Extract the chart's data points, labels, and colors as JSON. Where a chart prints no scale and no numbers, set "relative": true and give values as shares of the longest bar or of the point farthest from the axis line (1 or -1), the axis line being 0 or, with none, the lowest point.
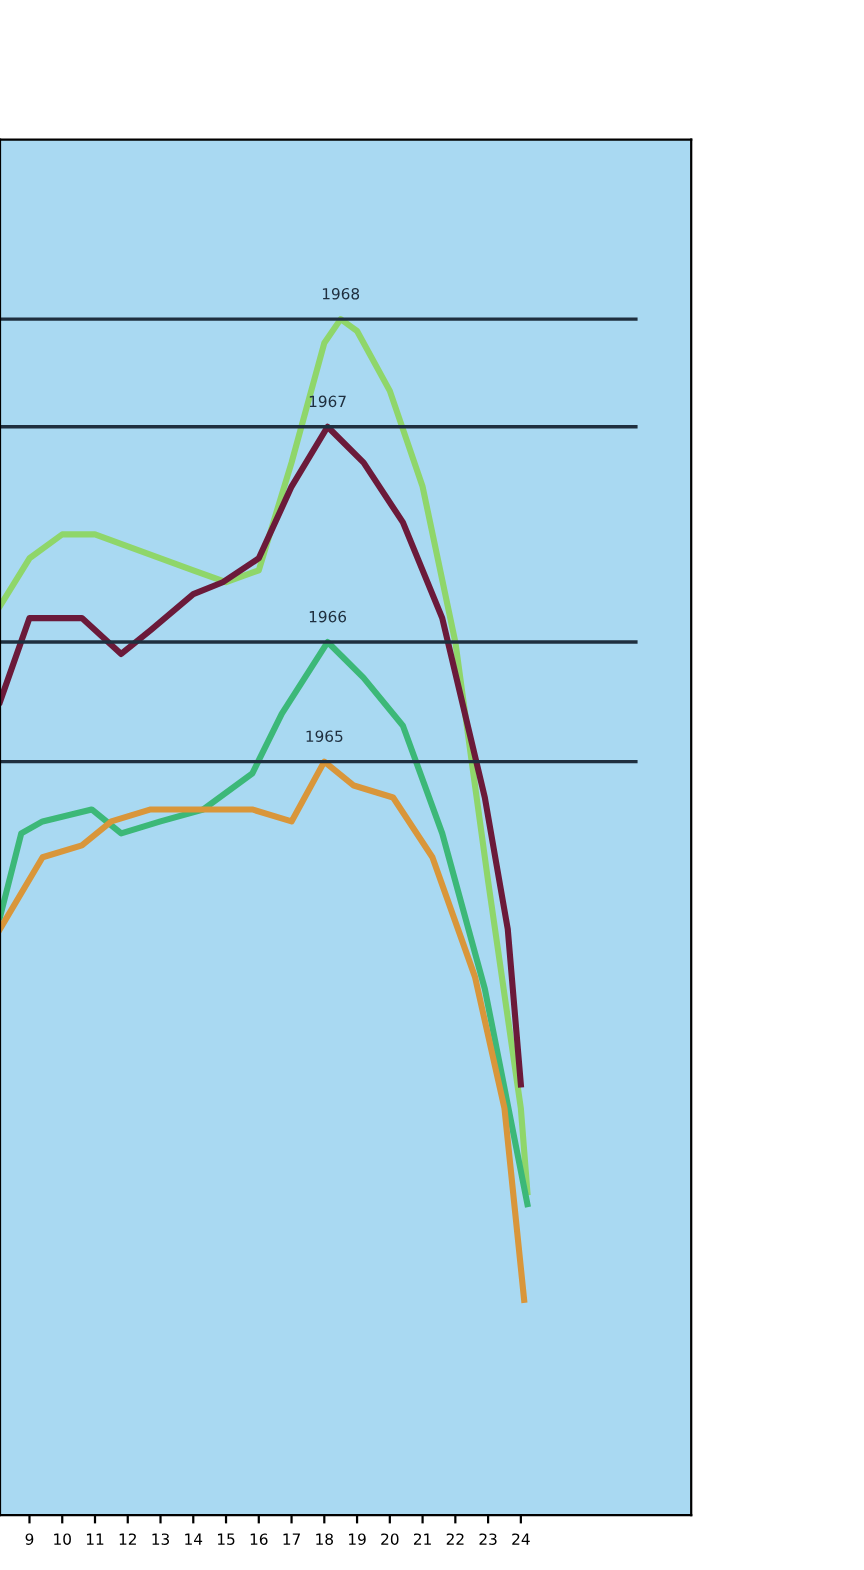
{
  "chart_data": {
    "type": "line",
    "relative": true,
    "tick_labels": "x",
    "grid": false,
    "legend": false,
    "marker": "none",
    "line_style": "solid",
    "xlim": [
      8.1,
      29.2
    ],
    "xticks": [
      9,
      10,
      11,
      12,
      13,
      14,
      15,
      16,
      17,
      18,
      19,
      20,
      21,
      22,
      23,
      24
    ],
    "series": [
      {
        "color": "#8fd66a",
        "x": [
          8.1,
          9,
          10,
          11,
          12,
          13,
          14,
          15,
          16,
          17,
          18,
          18.5,
          19,
          20,
          21,
          22,
          23,
          24,
          24.2
        ],
        "values": [
          0.76,
          0.8,
          0.82,
          0.82,
          0.81,
          0.8,
          0.79,
          0.78,
          0.79,
          0.88,
          0.98,
          1.0,
          0.99,
          0.94,
          0.86,
          0.73,
          0.53,
          0.34,
          0.27
        ]
      },
      {
        "color": "#6b1a3a",
        "x": [
          8.1,
          9,
          10.6,
          11.8,
          12.7,
          14,
          14.9,
          16,
          17,
          18.1,
          19.2,
          20.4,
          21.6,
          22.9,
          23.6,
          24
        ],
        "values": [
          0.68,
          0.75,
          0.75,
          0.72,
          0.74,
          0.77,
          0.78,
          0.8,
          0.86,
          0.91,
          0.88,
          0.83,
          0.75,
          0.6,
          0.49,
          0.36
        ]
      },
      {
        "color": "#3cb878",
        "x": [
          8.1,
          8.75,
          9.4,
          10.9,
          11.8,
          13,
          14.3,
          15.8,
          16.7,
          18.1,
          19.2,
          20.4,
          21.6,
          22.9,
          24.2
        ],
        "values": [
          0.5,
          0.57,
          0.58,
          0.59,
          0.57,
          0.58,
          0.59,
          0.62,
          0.67,
          0.73,
          0.7,
          0.66,
          0.57,
          0.44,
          0.26
        ]
      },
      {
        "color": "#d9963a",
        "x": [
          8.1,
          9.4,
          10.6,
          11.5,
          12.7,
          14.3,
          15.8,
          17,
          18,
          18.9,
          20.1,
          21.3,
          22.6,
          23.5,
          24.1
        ],
        "values": [
          0.49,
          0.55,
          0.56,
          0.58,
          0.59,
          0.59,
          0.59,
          0.58,
          0.63,
          0.61,
          0.6,
          0.55,
          0.45,
          0.34,
          0.18
        ]
      }
    ],
    "ref_lines": [
      {
        "axis": "y",
        "value": 1.0,
        "color": "#1f2f3f"
      },
      {
        "axis": "y",
        "value": 0.91,
        "color": "#1f2f3f"
      },
      {
        "axis": "y",
        "value": 0.73,
        "color": "#1f2f3f"
      },
      {
        "axis": "y",
        "value": 0.63,
        "color": "#1f2f3f"
      }
    ],
    "annotations": [
      {
        "text": "1968",
        "x": 18.5,
        "y": 1.0
      },
      {
        "text": "1967",
        "x": 18.1,
        "y": 0.91
      },
      {
        "text": "1966",
        "x": 18.1,
        "y": 0.73
      },
      {
        "text": "1965",
        "x": 18.0,
        "y": 0.63
      }
    ]
  }
}
